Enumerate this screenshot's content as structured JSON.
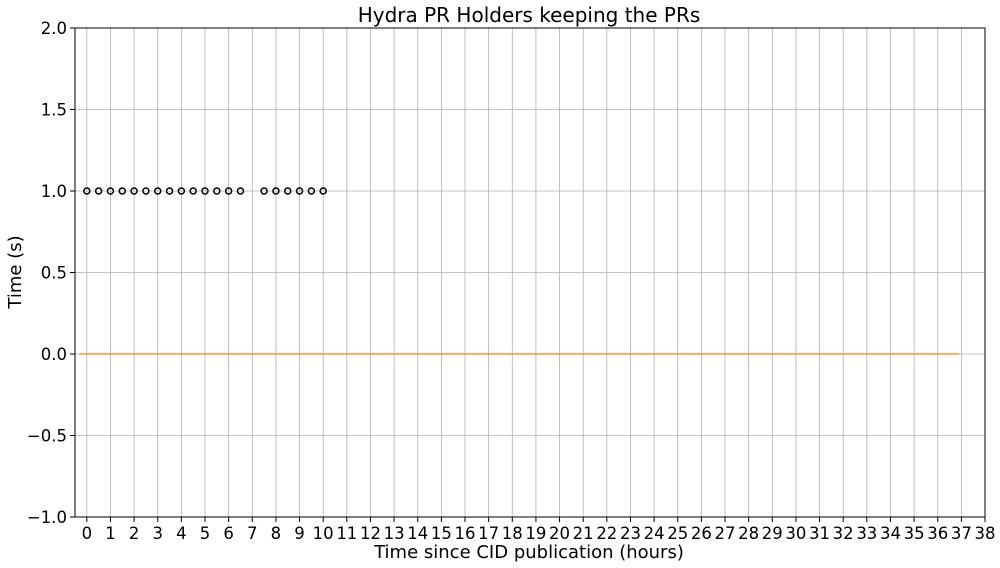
{
  "chart_data": {
    "type": "scatter",
    "title": "Hydra PR Holders keeping the PRs",
    "xlabel": "Time since CID publication (hours)",
    "ylabel": "Time (s)",
    "xlim": [
      -0.5,
      38
    ],
    "ylim": [
      -1.0,
      2.0
    ],
    "x_ticks": [
      0,
      1,
      2,
      3,
      4,
      5,
      6,
      7,
      8,
      9,
      10,
      11,
      12,
      13,
      14,
      15,
      16,
      17,
      18,
      19,
      20,
      21,
      22,
      23,
      24,
      25,
      26,
      27,
      28,
      29,
      30,
      31,
      32,
      33,
      34,
      35,
      36,
      37,
      38
    ],
    "y_ticks": [
      -1.0,
      -0.5,
      0.0,
      0.5,
      1.0,
      1.5,
      2.0
    ],
    "y_tick_labels": [
      "−1.0",
      "−0.5",
      "0.0",
      "0.5",
      "1.0",
      "1.5",
      "2.0"
    ],
    "grid": true,
    "series": [
      {
        "type": "scatter",
        "marker": "circle",
        "color": "#000000",
        "x": [
          0,
          0.5,
          1,
          1.5,
          2,
          2.5,
          3,
          3.5,
          4,
          4.5,
          5,
          5.5,
          6,
          6.5,
          7.5,
          8,
          8.5,
          9,
          9.5,
          10
        ],
        "y": [
          1,
          1,
          1,
          1,
          1,
          1,
          1,
          1,
          1,
          1,
          1,
          1,
          1,
          1,
          1,
          1,
          1,
          1,
          1,
          1
        ]
      },
      {
        "type": "line",
        "color": "#ff7f0e",
        "x": [
          -0.3,
          36.9
        ],
        "y": [
          0,
          0
        ]
      }
    ]
  }
}
